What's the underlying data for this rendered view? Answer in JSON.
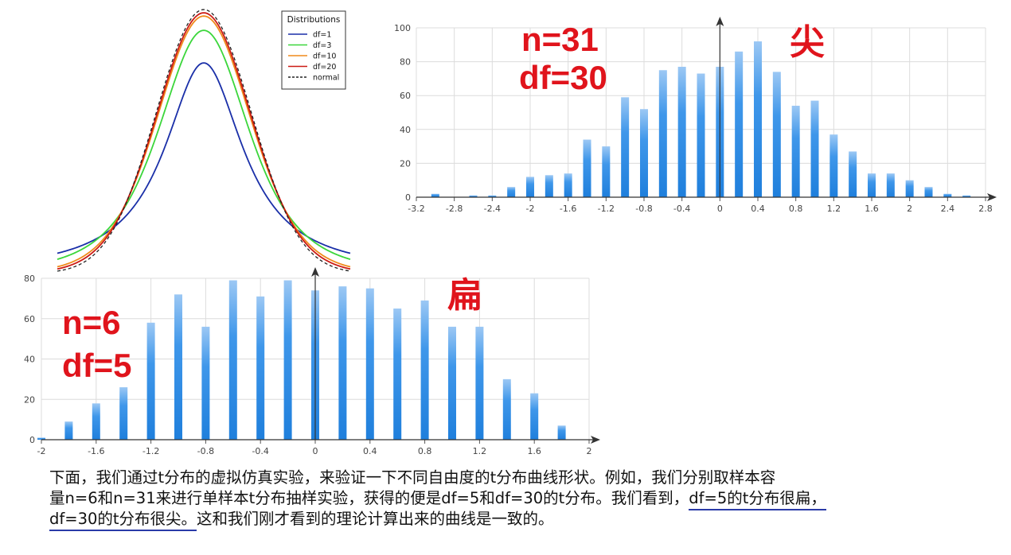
{
  "density_plot": {
    "legend_title": "Distributions",
    "curves": [
      {
        "label": "df=1",
        "df": 1,
        "color": "#1a2fa8",
        "dashed": false
      },
      {
        "label": "df=3",
        "df": 3,
        "color": "#3bd63b",
        "dashed": false
      },
      {
        "label": "df=10",
        "df": 10,
        "color": "#f08a1c",
        "dashed": false
      },
      {
        "label": "df=20",
        "df": 20,
        "color": "#cc1a14",
        "dashed": false
      },
      {
        "label": "normal",
        "df": null,
        "color": "#222222",
        "dashed": true
      }
    ]
  },
  "annotations": {
    "top_n": "n=31",
    "top_df": "df=30",
    "top_word": "尖",
    "bottom_n": "n=6",
    "bottom_df": "df=5",
    "bottom_word": "扁"
  },
  "caption": {
    "line1": "下面，我们通过t分布的虚拟仿真实验，来验证一下不同自由度的t分布曲线形状。例如，我们分别取样本容",
    "line2_a": "量n=6和n=31来进行单样本t分布抽样实验，获得的便是df=5和df=30的t分布。我们看到，",
    "line2_b": "df=5的t分布很扁，",
    "line3_a": "df=30的t分布很尖。",
    "line3_b": "这和我们刚才看到的理论计算出来的曲线是一致的。"
  },
  "chart_data": [
    {
      "type": "bar",
      "name_hint": "df=30",
      "x": [
        -3.0,
        -2.6,
        -2.4,
        -2.2,
        -2.0,
        -1.8,
        -1.6,
        -1.4,
        -1.2,
        -1.0,
        -0.8,
        -0.6,
        -0.4,
        -0.2,
        0.0,
        0.2,
        0.4,
        0.6,
        0.8,
        1.0,
        1.2,
        1.4,
        1.6,
        1.8,
        2.0,
        2.2,
        2.4,
        2.6
      ],
      "values": [
        2,
        1,
        1,
        6,
        12,
        13,
        14,
        34,
        30,
        59,
        52,
        75,
        77,
        73,
        77,
        86,
        92,
        74,
        54,
        57,
        37,
        27,
        14,
        14,
        10,
        6,
        2,
        1
      ],
      "xlim": [
        -3.2,
        2.8
      ],
      "ylim": [
        0,
        100
      ],
      "xticks": [
        "-3.2",
        "-2.8",
        "-2.4",
        "-2",
        "-1.6",
        "-1.2",
        "-0.8",
        "-0.4",
        "0",
        "0.4",
        "0.8",
        "1.2",
        "1.6",
        "2",
        "2.4",
        "2.8"
      ],
      "yticks": [
        "0",
        "20",
        "40",
        "60",
        "80",
        "100"
      ],
      "grid": true,
      "bar_color": "#2f8fe6"
    },
    {
      "type": "bar",
      "name_hint": "df=5",
      "x": [
        -2.0,
        -1.8,
        -1.6,
        -1.4,
        -1.2,
        -1.0,
        -0.8,
        -0.6,
        -0.4,
        -0.2,
        0.0,
        0.2,
        0.4,
        0.6,
        0.8,
        1.0,
        1.2,
        1.4,
        1.6,
        1.8
      ],
      "values": [
        1,
        9,
        18,
        26,
        58,
        72,
        56,
        79,
        71,
        79,
        74,
        76,
        75,
        65,
        69,
        56,
        56,
        30,
        23,
        7
      ],
      "xlim": [
        -2,
        2
      ],
      "ylim": [
        0,
        80
      ],
      "xticks": [
        "-2",
        "-1.6",
        "-1.2",
        "-0.8",
        "-0.4",
        "0",
        "0.4",
        "0.8",
        "1.2",
        "1.6",
        "2"
      ],
      "yticks": [
        "0",
        "20",
        "40",
        "60",
        "80"
      ],
      "grid": true,
      "bar_color": "#2f8fe6"
    }
  ]
}
